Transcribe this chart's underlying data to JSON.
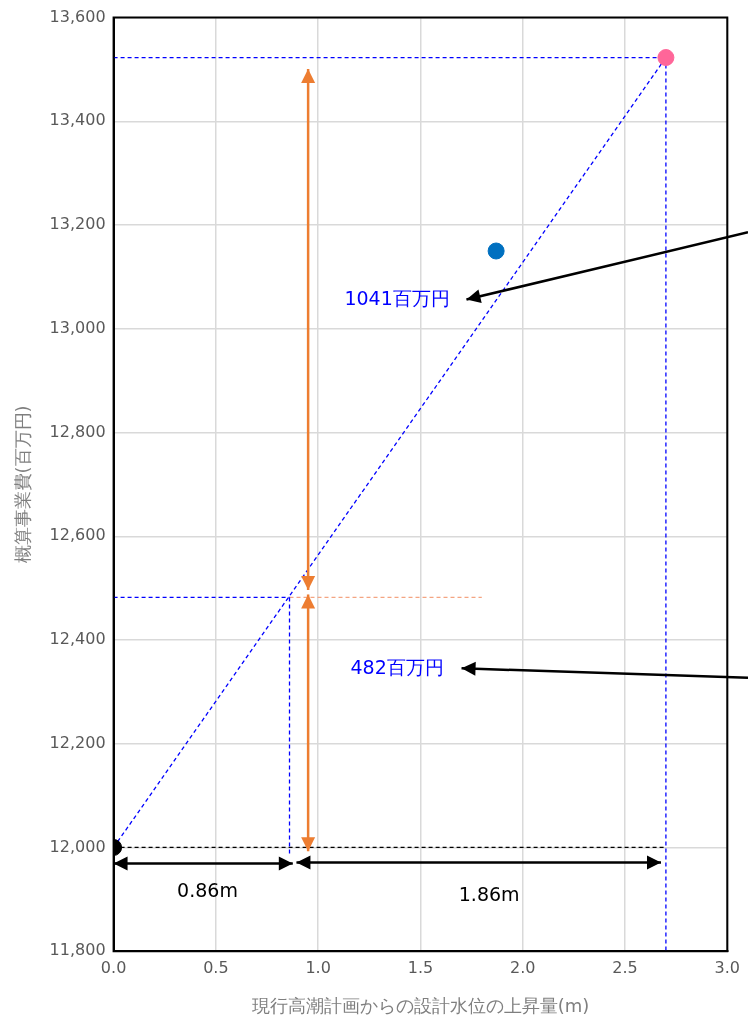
{
  "chart_data": {
    "type": "scatter",
    "xlabel": "現行高潮計画からの設計水位の上昇量(m)",
    "ylabel": "概算事業費(百万円)",
    "xlim": [
      0,
      3
    ],
    "xticks": [
      {
        "value": 0,
        "label": "0.0"
      },
      {
        "value": 0.5,
        "label": "0.5"
      },
      {
        "value": 1,
        "label": "1.0"
      },
      {
        "value": 1.5,
        "label": "1.5"
      },
      {
        "value": 2,
        "label": "2.0"
      },
      {
        "value": 2.5,
        "label": "2.5"
      },
      {
        "value": 3,
        "label": "3.0"
      }
    ],
    "ylim": [
      11800,
      13600
    ],
    "yticks": [
      {
        "value": 11800,
        "label": "11,800"
      },
      {
        "value": 12000,
        "label": "12,000"
      },
      {
        "value": 12200,
        "label": "12,200"
      },
      {
        "value": 12400,
        "label": "12,400"
      },
      {
        "value": 12600,
        "label": "12,600"
      },
      {
        "value": 12800,
        "label": "12,800"
      },
      {
        "value": 13000,
        "label": "13,000"
      },
      {
        "value": 13200,
        "label": "13,200"
      },
      {
        "value": 13400,
        "label": "13,400"
      },
      {
        "value": 13600,
        "label": "13,600"
      }
    ],
    "grid": true,
    "legend": false,
    "marker": "circle",
    "series": [
      {
        "x": [
          0,
          1.87,
          2.7
        ],
        "values": [
          12000,
          13150,
          13523
        ],
        "colors": [
          "#000000",
          "#0070c0",
          "#ff6699"
        ]
      },
      {
        "type": "line",
        "x": [
          0,
          2.7
        ],
        "values": [
          12000,
          13523
        ],
        "color": "#0000ff",
        "line_style": "dashed",
        "marker": "none"
      },
      {
        "type": "line",
        "x": [
          0,
          2.7
        ],
        "values": [
          13523,
          13523
        ],
        "color": "#0000ff",
        "line_style": "dashed",
        "marker": "none"
      },
      {
        "type": "line",
        "x": [
          2.7,
          2.7
        ],
        "values": [
          13523,
          11800
        ],
        "color": "#0000ff",
        "line_style": "dashed",
        "marker": "none"
      },
      {
        "type": "line",
        "x": [
          0,
          0.86
        ],
        "values": [
          12482,
          12482
        ],
        "color": "#0000ff",
        "line_style": "dashed",
        "marker": "none"
      },
      {
        "type": "line",
        "x": [
          0.86,
          0.86
        ],
        "values": [
          12482,
          11985
        ],
        "color": "#0000ff",
        "line_style": "dashed",
        "marker": "none"
      },
      {
        "type": "line",
        "x": [
          0,
          2.7
        ],
        "values": [
          12000,
          12000
        ],
        "color": "#000000",
        "line_style": "dashed",
        "marker": "none"
      },
      {
        "type": "line",
        "x": [
          0.86,
          1.8
        ],
        "values": [
          12482,
          12482
        ],
        "color": "#f4a582",
        "line_style": "dashed",
        "marker": "none"
      }
    ],
    "annotations": [
      "1041百万円",
      "482百万円",
      "0.86m",
      "1.86m"
    ]
  }
}
